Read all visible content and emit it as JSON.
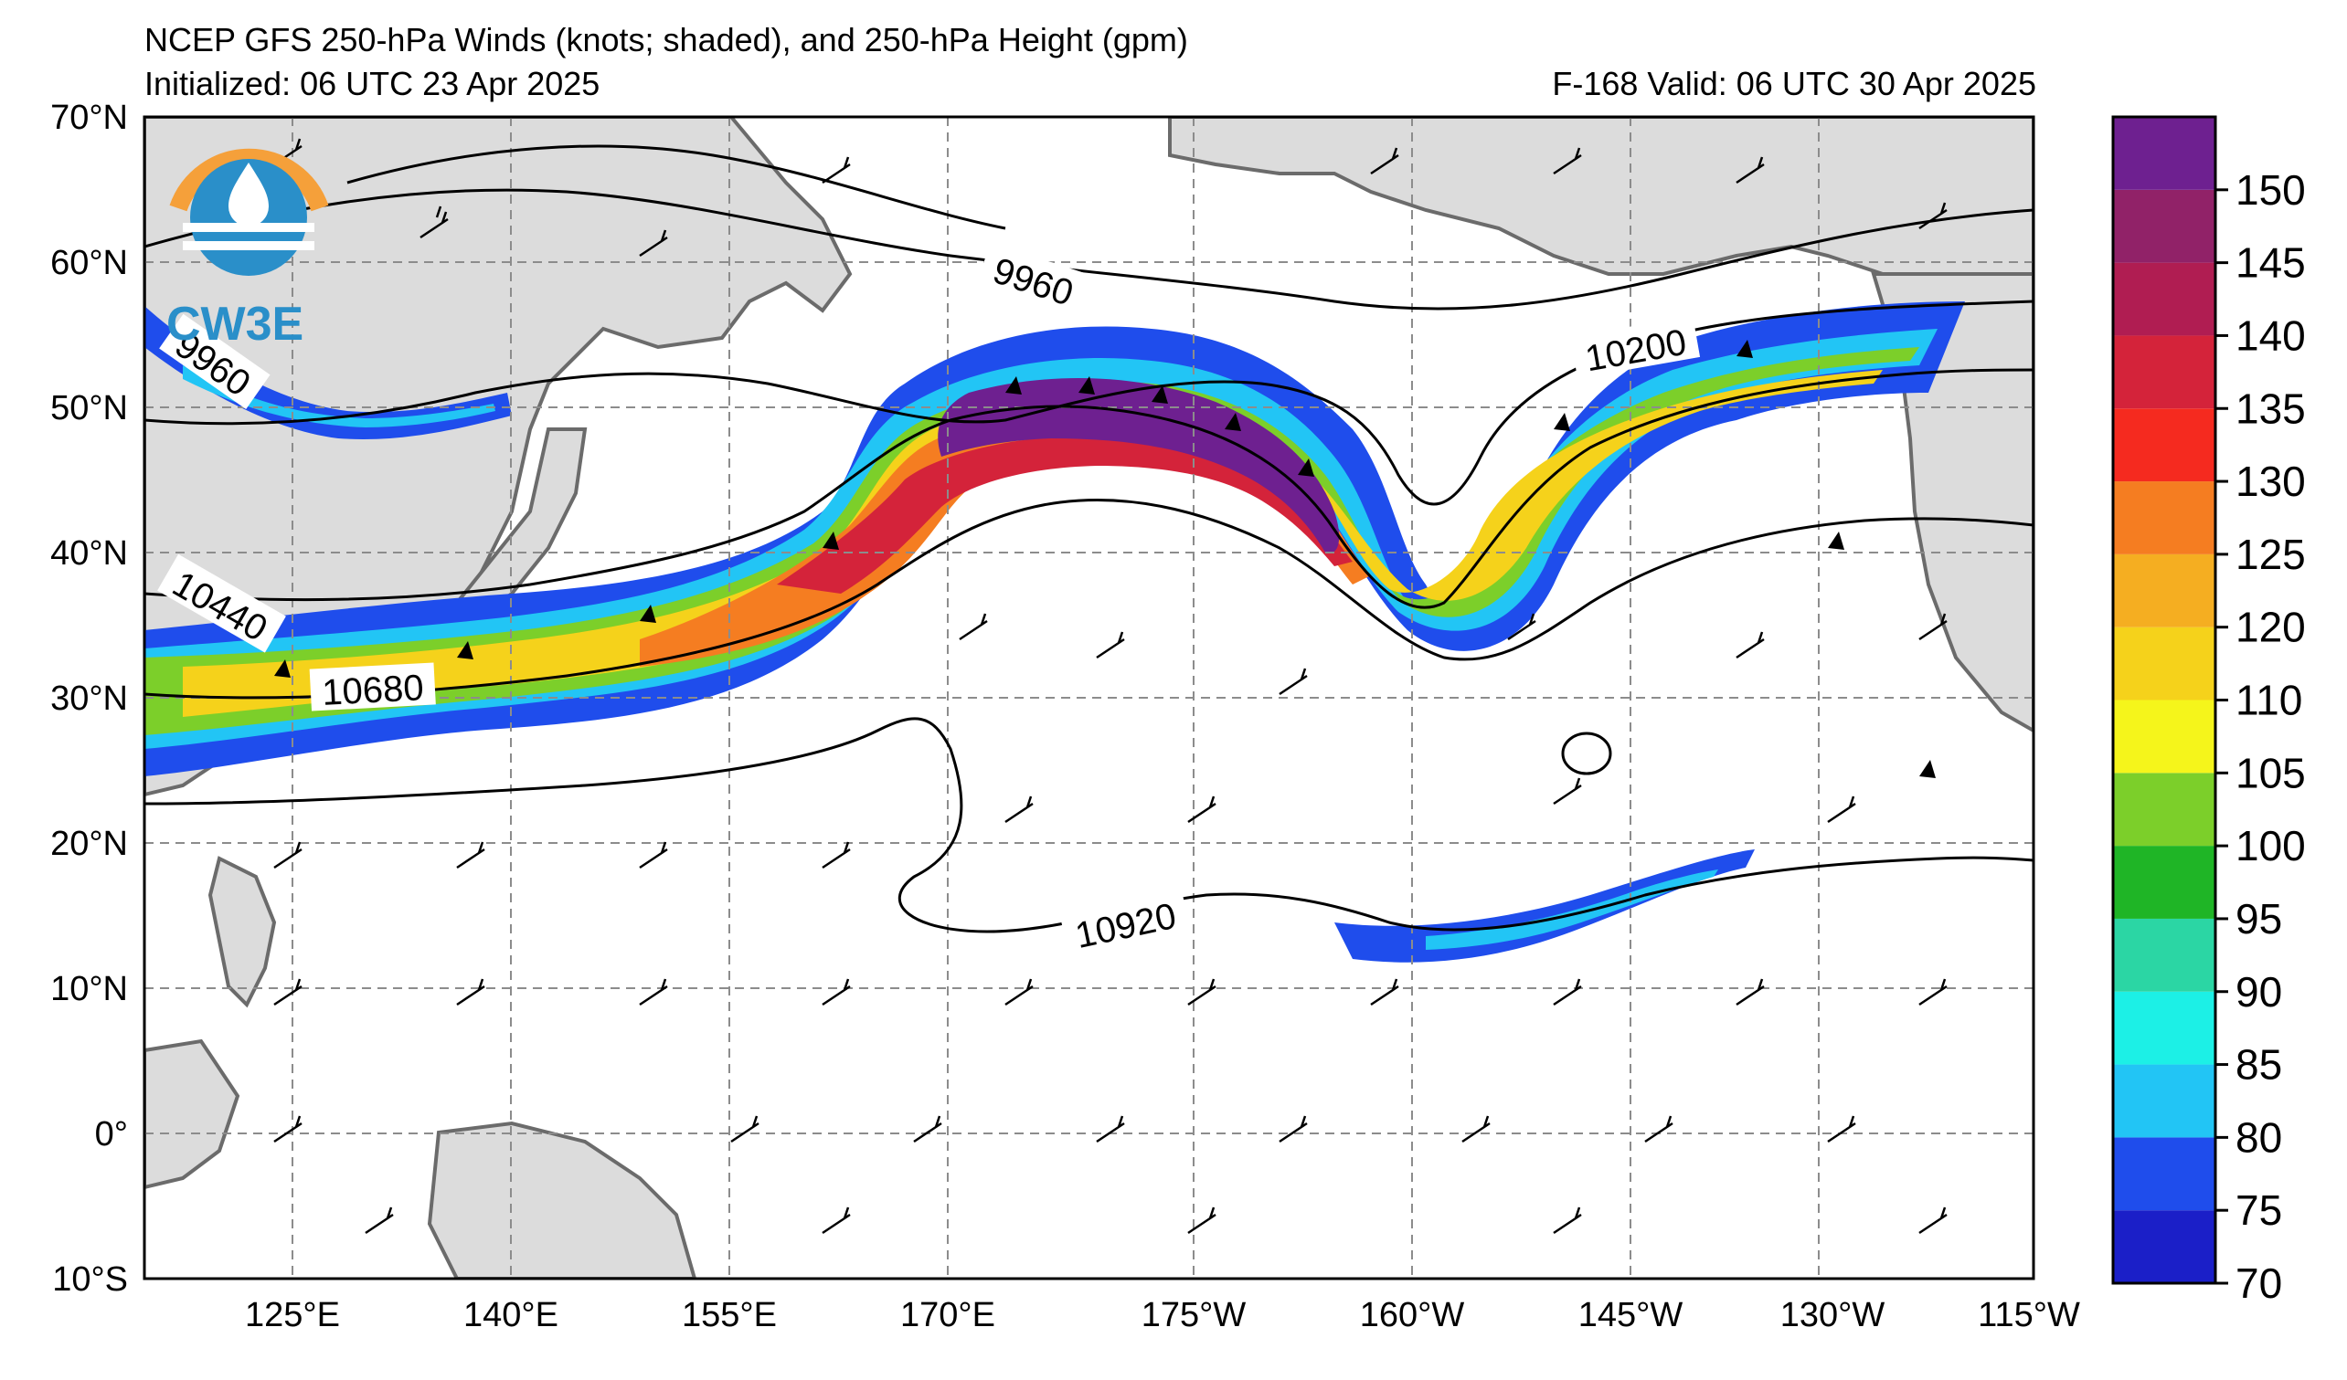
{
  "header": {
    "title": "NCEP GFS 250-hPa Winds (knots; shaded), and 250-hPa Height (gpm)",
    "initialized": "Initialized: 06 UTC 23 Apr 2025",
    "valid": "F-168  Valid: 06 UTC 30 Apr 2025"
  },
  "logo": {
    "text": "CW3E"
  },
  "axes": {
    "lat_labels": [
      "70°N",
      "60°N",
      "50°N",
      "40°N",
      "30°N",
      "20°N",
      "10°N",
      "0°",
      "10°S"
    ],
    "lon_labels": [
      "125°E",
      "140°E",
      "155°E",
      "170°E",
      "175°W",
      "160°W",
      "145°W",
      "130°W",
      "115°W"
    ]
  },
  "contour_labels": [
    "9960",
    "9960",
    "10200",
    "10440",
    "10680",
    "10920"
  ],
  "colorbar": {
    "levels": [
      "70",
      "75",
      "80",
      "85",
      "90",
      "95",
      "100",
      "105",
      "110",
      "120",
      "125",
      "130",
      "135",
      "140",
      "145",
      "150"
    ],
    "colors": [
      "#1b1fc8",
      "#1f4dec",
      "#22c5f5",
      "#1cf0e6",
      "#2bd6a4",
      "#1fb526",
      "#7ccf2a",
      "#f5f51b",
      "#f5d21b",
      "#f5ae21",
      "#f57d21",
      "#f52a1f",
      "#d4233a",
      "#b01d52",
      "#912268",
      "#6e2090"
    ]
  },
  "palette": {
    "land": "#dcdcdc",
    "coast": "#6b6b6b",
    "grid": "#8c8c8c",
    "contour": "#000000"
  }
}
